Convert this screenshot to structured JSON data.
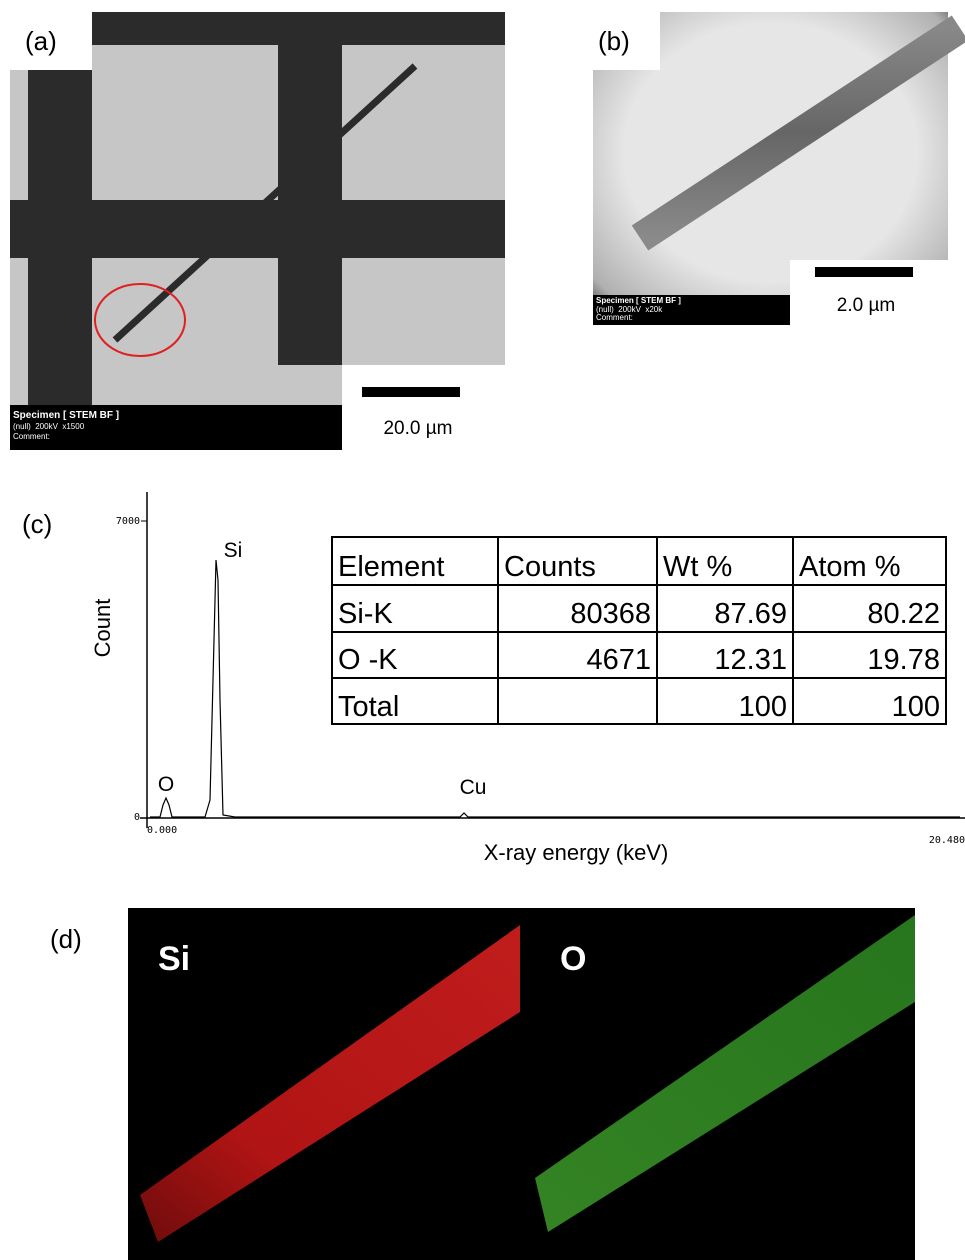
{
  "panels": {
    "a": {
      "label": "(a)",
      "status": [
        "Specimen [ STEM BF ]",
        "(null)  200kV  x1500",
        "Comment:"
      ],
      "scale": "20.0 µm"
    },
    "b": {
      "label": "(b)",
      "status": [
        "Specimen [ STEM BF ]",
        "(null)  200kV  x20k",
        "Comment:"
      ],
      "scale": "2.0 µm"
    },
    "c": {
      "label": "(c)",
      "y_axis_label": "Count",
      "y_ticks": [
        "7000",
        "0"
      ],
      "x_ticks": [
        "0.000",
        "20.480"
      ],
      "x_axis_label": "X-ray energy (keV)",
      "peaks": [
        "Si",
        "O",
        "Cu"
      ],
      "table": {
        "header": [
          "Element",
          "Counts",
          "Wt %",
          "Atom %"
        ],
        "rows": [
          [
            "Si-K",
            "80368",
            "87.69",
            "80.22"
          ],
          [
            "O -K",
            "4671",
            "12.31",
            "19.78"
          ],
          [
            "Total",
            "",
            "100",
            "100"
          ]
        ]
      }
    },
    "d": {
      "label": "(d)",
      "maps": [
        "Si",
        "O"
      ]
    }
  }
}
